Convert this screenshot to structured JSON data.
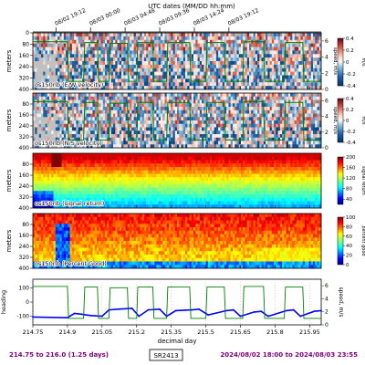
{
  "header": {
    "title": "UTC dates (MM/DD hh:mm)",
    "date_ticks": [
      "08/02 19:12",
      "08/03 00:00",
      "08/03 04:48",
      "08/03 09:36",
      "08/03 14:24",
      "08/03 19:12"
    ]
  },
  "footer": {
    "range_text": "214.75 to 216.0 (1.25 days)",
    "cruise": "SR2413",
    "date_text": "2024/08/02 18:00 to 2024/08/03 23:55"
  },
  "colors": {
    "text": "#000000",
    "footer": "#800080",
    "heading_line": "#0000ff",
    "speed_line": "#008000",
    "missing": "#c0c0c0"
  },
  "chart_data": [
    {
      "type": "heatmap",
      "title": "os150nb (E/W velocity)",
      "ylabel": "meters",
      "right_ylabel": "speed, m/s",
      "colorbar_label": "m/s",
      "y_ticks": [
        0,
        80,
        160,
        240,
        320,
        400
      ],
      "right_ticks": [
        0,
        2,
        4,
        6
      ],
      "colormap": "diverging",
      "colorbar_ticks": [
        0.4,
        0.2,
        0.0,
        -0.2,
        -0.4
      ],
      "clim": [
        -0.4,
        0.4
      ]
    },
    {
      "type": "heatmap",
      "title": "os150nb (N/S velocity)",
      "ylabel": "meters",
      "right_ylabel": "speed, m/s",
      "colorbar_label": "m/s",
      "y_ticks": [
        80,
        160,
        240,
        320,
        400
      ],
      "right_ticks": [
        0,
        2,
        4,
        6
      ],
      "colormap": "diverging",
      "colorbar_ticks": [
        0.4,
        0.2,
        0.0,
        -0.2,
        -0.4
      ],
      "clim": [
        -0.4,
        0.4
      ]
    },
    {
      "type": "heatmap",
      "title": "os150nb (signal return)",
      "ylabel": "meters",
      "colorbar_label": "signal return",
      "y_ticks": [
        80,
        160,
        240,
        320,
        400
      ],
      "colormap": "jet",
      "colorbar_ticks": [
        200,
        160,
        120,
        80,
        40
      ],
      "clim": [
        20,
        200
      ]
    },
    {
      "type": "heatmap",
      "title": "os150nb (Percent Good)",
      "ylabel": "meters",
      "colorbar_label": "percent good",
      "y_ticks": [
        80,
        160,
        240,
        320,
        400
      ],
      "colormap": "jet",
      "colorbar_ticks": [
        100,
        80,
        60,
        40,
        20,
        0
      ],
      "clim": [
        0,
        100
      ]
    },
    {
      "type": "line",
      "ylabel": "heading",
      "right_ylabel": "speed, m/s",
      "xlabel": "decimal day",
      "x_ticks": [
        214.75,
        214.9,
        215.05,
        215.2,
        215.35,
        215.5,
        215.65,
        215.8,
        215.95
      ],
      "xlim": [
        214.75,
        216.0
      ],
      "left_ticks": [
        100,
        0,
        -100
      ],
      "right_ticks": [
        6,
        4,
        2,
        0
      ],
      "series": [
        {
          "axis": "left",
          "x": [
            214.75,
            214.9,
            214.93,
            214.96,
            215.0,
            215.05,
            215.08,
            215.12,
            215.18,
            215.21,
            215.25,
            215.3,
            215.33,
            215.37,
            215.44,
            215.47,
            215.51,
            215.59,
            215.62,
            215.65,
            215.71,
            215.74,
            215.77,
            215.85,
            215.88,
            215.91,
            215.97,
            216.0
          ],
          "y": [
            -105,
            -110,
            -80,
            -85,
            -95,
            -100,
            -55,
            -50,
            -45,
            -100,
            -55,
            -50,
            -100,
            -60,
            -55,
            -50,
            -90,
            -60,
            -55,
            -100,
            -70,
            -65,
            -100,
            -60,
            -55,
            -100,
            -65,
            -60
          ]
        },
        {
          "axis": "right",
          "x": [
            214.75,
            214.9,
            214.905,
            214.97,
            214.975,
            215.03,
            215.035,
            215.08,
            215.085,
            215.16,
            215.165,
            215.2,
            215.205,
            215.27,
            215.275,
            215.33,
            215.335,
            215.43,
            215.435,
            215.5,
            215.505,
            215.58,
            215.585,
            215.66,
            215.665,
            215.75,
            215.755,
            215.84,
            215.845,
            215.92,
            215.925,
            216.0
          ],
          "y": [
            5.9,
            5.9,
            1.0,
            1.0,
            5.8,
            5.8,
            1.0,
            1.0,
            5.7,
            5.7,
            1.0,
            1.0,
            5.8,
            5.8,
            1.0,
            1.0,
            5.8,
            5.8,
            1.0,
            1.0,
            5.8,
            5.8,
            1.0,
            1.0,
            5.9,
            5.9,
            1.0,
            1.0,
            5.8,
            5.8,
            1.0,
            1.0
          ]
        }
      ]
    }
  ]
}
